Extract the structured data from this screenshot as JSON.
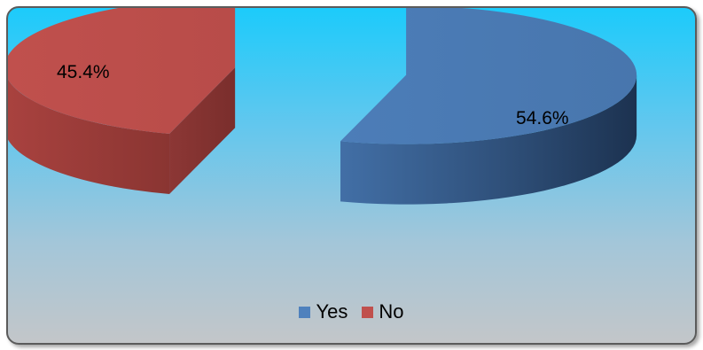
{
  "chart_data": {
    "type": "pie",
    "title": "",
    "series": [
      {
        "name": "Yes",
        "value": 54.6,
        "label": "54.6%",
        "color": "#4a7ab5"
      },
      {
        "name": "No",
        "value": 45.4,
        "label": "45.4%",
        "color": "#c0504d"
      }
    ],
    "exploded": true,
    "three_d": true,
    "legend_position": "bottom"
  },
  "legend": {
    "yes_label": "Yes",
    "no_label": "No",
    "yes_color": "#4f81bd",
    "no_color": "#c0504d"
  }
}
